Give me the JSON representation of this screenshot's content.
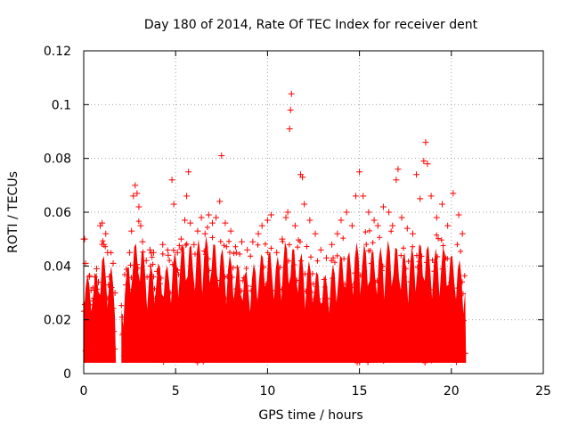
{
  "chart_data": {
    "type": "scatter",
    "title": "Day 180 of 2014, Rate Of TEC Index for receiver dent",
    "xlabel": "GPS time / hours",
    "ylabel": "ROTI / TECUs",
    "xlim": [
      0,
      25
    ],
    "ylim": [
      0,
      0.12
    ],
    "xticks": [
      0,
      5,
      10,
      15,
      20,
      25
    ],
    "xtick_labels": [
      "0",
      "5",
      "10",
      "15",
      "20",
      "25"
    ],
    "yticks": [
      0,
      0.02,
      0.04,
      0.06,
      0.08,
      0.1,
      0.12
    ],
    "ytick_labels": [
      "0",
      "0.02",
      "0.04",
      "0.06",
      "0.08",
      "0.1",
      "0.12"
    ],
    "grid": true,
    "marker": "+",
    "series": [
      {
        "color": "#ff0000",
        "points": [
          [
            0.0,
            0.05
          ],
          [
            0.05,
            0.05
          ],
          [
            0.1,
            0.041
          ],
          [
            0.2,
            0.024
          ],
          [
            0.3,
            0.036
          ],
          [
            0.4,
            0.031
          ],
          [
            0.5,
            0.027
          ],
          [
            0.6,
            0.036
          ],
          [
            0.7,
            0.039
          ],
          [
            0.8,
            0.034
          ],
          [
            0.9,
            0.055
          ],
          [
            1.0,
            0.056
          ],
          [
            1.1,
            0.048
          ],
          [
            1.2,
            0.052
          ],
          [
            1.3,
            0.045
          ],
          [
            1.4,
            0.036
          ],
          [
            1.5,
            0.032
          ],
          [
            1.6,
            0.041
          ],
          [
            1.7,
            0.03
          ],
          [
            2.1,
            0.021
          ],
          [
            2.3,
            0.033
          ],
          [
            2.5,
            0.045
          ],
          [
            2.6,
            0.053
          ],
          [
            2.7,
            0.066
          ],
          [
            2.8,
            0.07
          ],
          [
            2.9,
            0.067
          ],
          [
            3.0,
            0.062
          ],
          [
            3.1,
            0.055
          ],
          [
            3.2,
            0.049
          ],
          [
            3.4,
            0.042
          ],
          [
            3.6,
            0.046
          ],
          [
            3.8,
            0.045
          ],
          [
            4.0,
            0.038
          ],
          [
            4.3,
            0.048
          ],
          [
            4.6,
            0.044
          ],
          [
            4.8,
            0.072
          ],
          [
            4.9,
            0.063
          ],
          [
            5.1,
            0.045
          ],
          [
            5.3,
            0.05
          ],
          [
            5.5,
            0.057
          ],
          [
            5.6,
            0.066
          ],
          [
            5.7,
            0.075
          ],
          [
            5.8,
            0.056
          ],
          [
            6.0,
            0.048
          ],
          [
            6.2,
            0.053
          ],
          [
            6.4,
            0.058
          ],
          [
            6.6,
            0.052
          ],
          [
            6.8,
            0.059
          ],
          [
            7.0,
            0.056
          ],
          [
            7.2,
            0.058
          ],
          [
            7.4,
            0.064
          ],
          [
            7.5,
            0.081
          ],
          [
            7.7,
            0.056
          ],
          [
            8.0,
            0.053
          ],
          [
            8.3,
            0.045
          ],
          [
            8.6,
            0.049
          ],
          [
            8.9,
            0.046
          ],
          [
            9.2,
            0.049
          ],
          [
            9.5,
            0.052
          ],
          [
            9.7,
            0.055
          ],
          [
            10.0,
            0.057
          ],
          [
            10.2,
            0.059
          ],
          [
            10.5,
            0.045
          ],
          [
            10.8,
            0.05
          ],
          [
            11.0,
            0.058
          ],
          [
            11.1,
            0.06
          ],
          [
            11.2,
            0.091
          ],
          [
            11.25,
            0.098
          ],
          [
            11.3,
            0.104
          ],
          [
            11.5,
            0.055
          ],
          [
            11.8,
            0.074
          ],
          [
            11.9,
            0.073
          ],
          [
            12.0,
            0.063
          ],
          [
            12.3,
            0.057
          ],
          [
            12.6,
            0.052
          ],
          [
            12.9,
            0.046
          ],
          [
            13.2,
            0.043
          ],
          [
            13.5,
            0.048
          ],
          [
            13.8,
            0.052
          ],
          [
            14.0,
            0.057
          ],
          [
            14.3,
            0.06
          ],
          [
            14.6,
            0.055
          ],
          [
            14.8,
            0.066
          ],
          [
            15.0,
            0.075
          ],
          [
            15.2,
            0.066
          ],
          [
            15.5,
            0.06
          ],
          [
            15.8,
            0.057
          ],
          [
            16.0,
            0.055
          ],
          [
            16.3,
            0.062
          ],
          [
            16.6,
            0.06
          ],
          [
            16.8,
            0.055
          ],
          [
            17.0,
            0.072
          ],
          [
            17.1,
            0.076
          ],
          [
            17.3,
            0.058
          ],
          [
            17.6,
            0.054
          ],
          [
            17.9,
            0.052
          ],
          [
            18.1,
            0.074
          ],
          [
            18.3,
            0.065
          ],
          [
            18.5,
            0.079
          ],
          [
            18.6,
            0.086
          ],
          [
            18.7,
            0.078
          ],
          [
            18.9,
            0.066
          ],
          [
            19.2,
            0.058
          ],
          [
            19.5,
            0.063
          ],
          [
            19.8,
            0.055
          ],
          [
            20.1,
            0.067
          ],
          [
            20.4,
            0.059
          ],
          [
            20.6,
            0.052
          ]
        ]
      }
    ],
    "dense_cloud": {
      "color": "#ff0000",
      "segments": [
        [
          0,
          1.75
        ],
        [
          2.05,
          20.8
        ]
      ],
      "upper_envelope": [
        [
          0.0,
          0.038
        ],
        [
          0.5,
          0.035
        ],
        [
          1.0,
          0.045
        ],
        [
          1.5,
          0.04
        ],
        [
          1.75,
          0.032
        ],
        [
          2.05,
          0.028
        ],
        [
          2.5,
          0.045
        ],
        [
          3.0,
          0.052
        ],
        [
          3.5,
          0.04
        ],
        [
          4.0,
          0.042
        ],
        [
          4.5,
          0.04
        ],
        [
          5.0,
          0.046
        ],
        [
          5.5,
          0.05
        ],
        [
          6.0,
          0.048
        ],
        [
          6.5,
          0.052
        ],
        [
          7.0,
          0.05
        ],
        [
          7.5,
          0.047
        ],
        [
          8.0,
          0.044
        ],
        [
          8.5,
          0.04
        ],
        [
          9.0,
          0.038
        ],
        [
          9.5,
          0.044
        ],
        [
          10.0,
          0.047
        ],
        [
          10.5,
          0.043
        ],
        [
          11.0,
          0.05
        ],
        [
          11.5,
          0.047
        ],
        [
          12.0,
          0.044
        ],
        [
          12.5,
          0.04
        ],
        [
          13.0,
          0.036
        ],
        [
          13.5,
          0.04
        ],
        [
          14.0,
          0.045
        ],
        [
          14.5,
          0.046
        ],
        [
          15.0,
          0.05
        ],
        [
          15.5,
          0.047
        ],
        [
          16.0,
          0.046
        ],
        [
          16.5,
          0.05
        ],
        [
          17.0,
          0.048
        ],
        [
          17.5,
          0.045
        ],
        [
          18.0,
          0.048
        ],
        [
          18.5,
          0.05
        ],
        [
          19.0,
          0.046
        ],
        [
          19.5,
          0.048
        ],
        [
          20.0,
          0.045
        ],
        [
          20.5,
          0.042
        ],
        [
          20.8,
          0.036
        ]
      ],
      "lower_bound": 0.004
    }
  }
}
